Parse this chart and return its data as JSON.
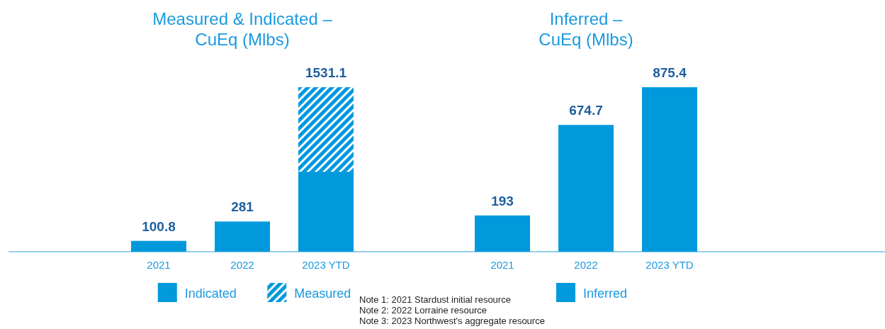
{
  "chart_data": [
    {
      "type": "bar",
      "title": "Measured & Indicated – CuEq (Mlbs)",
      "categories": [
        "2021",
        "2022",
        "2023 YTD"
      ],
      "stacked": true,
      "series": [
        {
          "name": "Indicated",
          "color": "#0099dc",
          "values": [
            100.8,
            281,
            745
          ],
          "value_labels": [
            "100.8",
            "281",
            null
          ]
        },
        {
          "name": "Measured",
          "color": "#0099dc",
          "values": [
            null,
            null,
            786.1
          ]
        }
      ],
      "totals": [
        null,
        null,
        "1531.1"
      ],
      "legend": "bottom",
      "annotations": [
        "Note 1: 2021 Stardust initial resource",
        "Note 2: 2022 Lorraine resource",
        "Note 3: 2023 Northwest's aggregate resource"
      ]
    },
    {
      "type": "bar",
      "title": "Inferred – CuEq (Mlbs)",
      "categories": [
        "2021",
        "2022",
        "2023 YTD"
      ],
      "series": [
        {
          "name": "Inferred",
          "color": "#0099dc",
          "values": [
            193,
            674.7,
            875.4
          ]
        }
      ],
      "data_labels": true,
      "legend": "bottom"
    }
  ]
}
